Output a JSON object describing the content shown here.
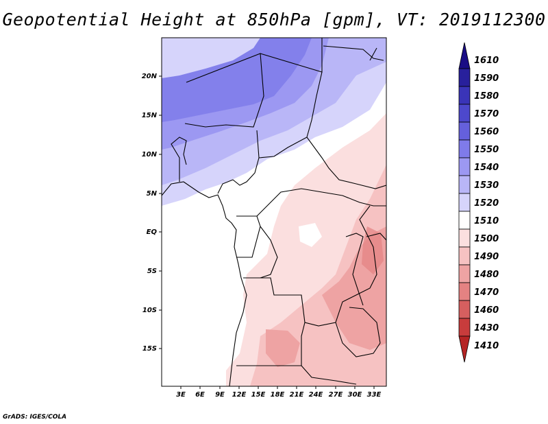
{
  "title": "Geopotential Height at 850hPa [gpm], VT: 2019112300",
  "credit": "GrADS: IGES/COLA",
  "map": {
    "lon_labels": [
      "3E",
      "6E",
      "9E",
      "12E",
      "15E",
      "18E",
      "21E",
      "24E",
      "27E",
      "30E",
      "33E"
    ],
    "lat_labels": [
      "20N",
      "15N",
      "10N",
      "5N",
      "EQ",
      "5S",
      "10S",
      "15S"
    ]
  },
  "colorbar": {
    "levels": [
      "1610",
      "1590",
      "1580",
      "1570",
      "1560",
      "1550",
      "1540",
      "1530",
      "1520",
      "1510",
      "1500",
      "1490",
      "1480",
      "1470",
      "1460",
      "1430",
      "1410"
    ],
    "colors": [
      "#1a0d85",
      "#28209c",
      "#3a34b8",
      "#4d48cc",
      "#6560dc",
      "#7f7bea",
      "#9c98f2",
      "#b9b6f7",
      "#d6d4fb",
      "#ffffff",
      "#fbdfdf",
      "#f6c2c2",
      "#eea3a3",
      "#e48282",
      "#d65f5f",
      "#c83c3c",
      "#b52424"
    ]
  }
}
